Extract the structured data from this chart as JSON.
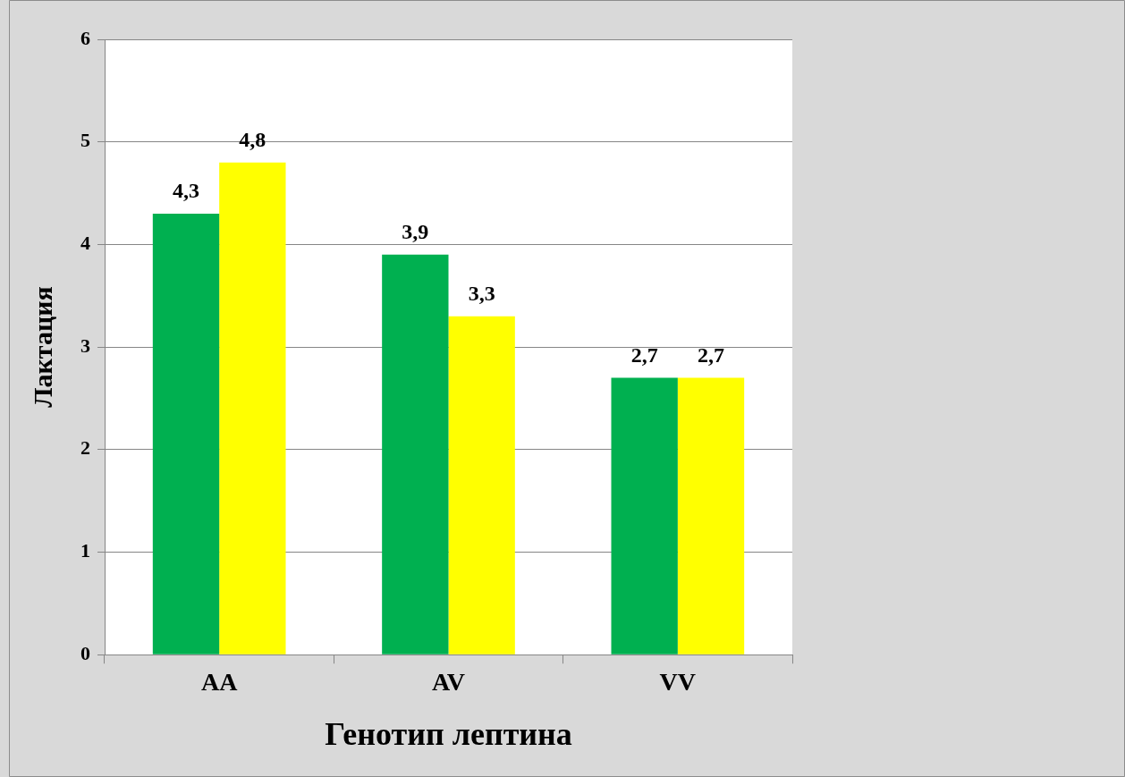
{
  "chart_data": {
    "type": "bar",
    "xlabel": "Генотип лептина",
    "ylabel": "Лактация",
    "categories": [
      "AA",
      "AV",
      "VV"
    ],
    "series": [
      {
        "color": "#00b050",
        "values": [
          4.3,
          3.9,
          2.7
        ],
        "value_labels": [
          "4,3",
          "3,9",
          "2,7"
        ]
      },
      {
        "color": "#ffff00",
        "values": [
          4.8,
          3.3,
          2.7
        ],
        "value_labels": [
          "4,8",
          "3,3",
          "2,7"
        ]
      }
    ],
    "ylim": [
      0,
      6
    ],
    "yticks": [
      0,
      1,
      2,
      3,
      4,
      5,
      6
    ],
    "grid": "y",
    "legend": false
  }
}
